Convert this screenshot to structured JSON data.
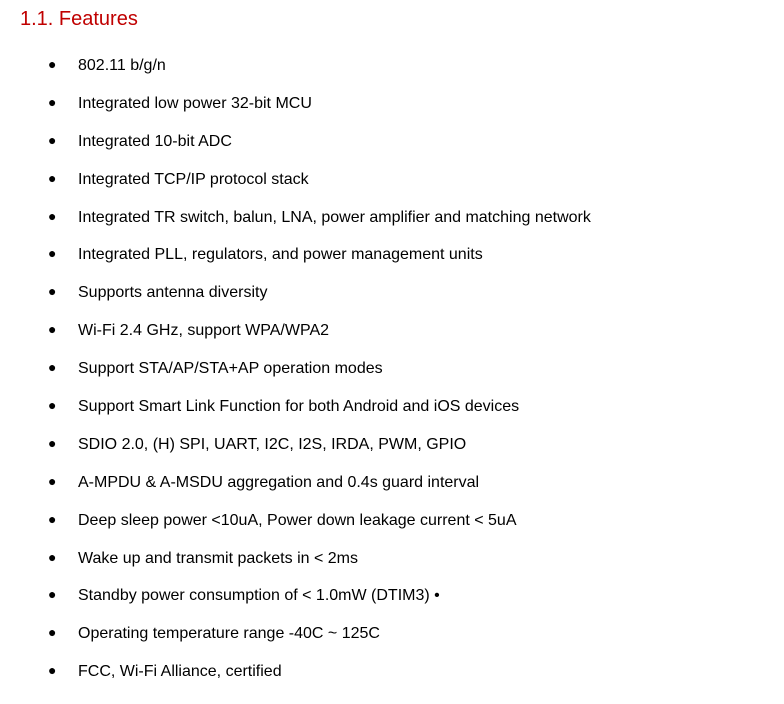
{
  "heading": {
    "text": "1.1. Features",
    "color": "#c00000",
    "fontsize": 20
  },
  "bullet_color": "#000000",
  "text_color": "#000000",
  "text_fontsize": 16,
  "features": [
    "802.11 b/g/n",
    "Integrated low power 32-bit MCU",
    "Integrated 10-bit ADC",
    "Integrated TCP/IP protocol stack",
    "Integrated TR switch, balun, LNA, power amplifier and matching network",
    "Integrated PLL, regulators, and power management units",
    "Supports antenna diversity",
    "Wi-Fi 2.4 GHz, support WPA/WPA2",
    "Support STA/AP/STA+AP operation modes",
    "Support Smart Link Function for both Android and iOS devices",
    "SDIO 2.0, (H) SPI, UART, I2C, I2S, IRDA, PWM, GPIO",
    "A-MPDU & A-MSDU aggregation and 0.4s guard interval",
    "Deep sleep power <10uA, Power down leakage current < 5uA",
    "Wake up and transmit packets in < 2ms",
    "Standby power consumption of < 1.0mW (DTIM3) •",
    "Operating temperature range -40C ~ 125C",
    "FCC, Wi-Fi Alliance, certified"
  ]
}
